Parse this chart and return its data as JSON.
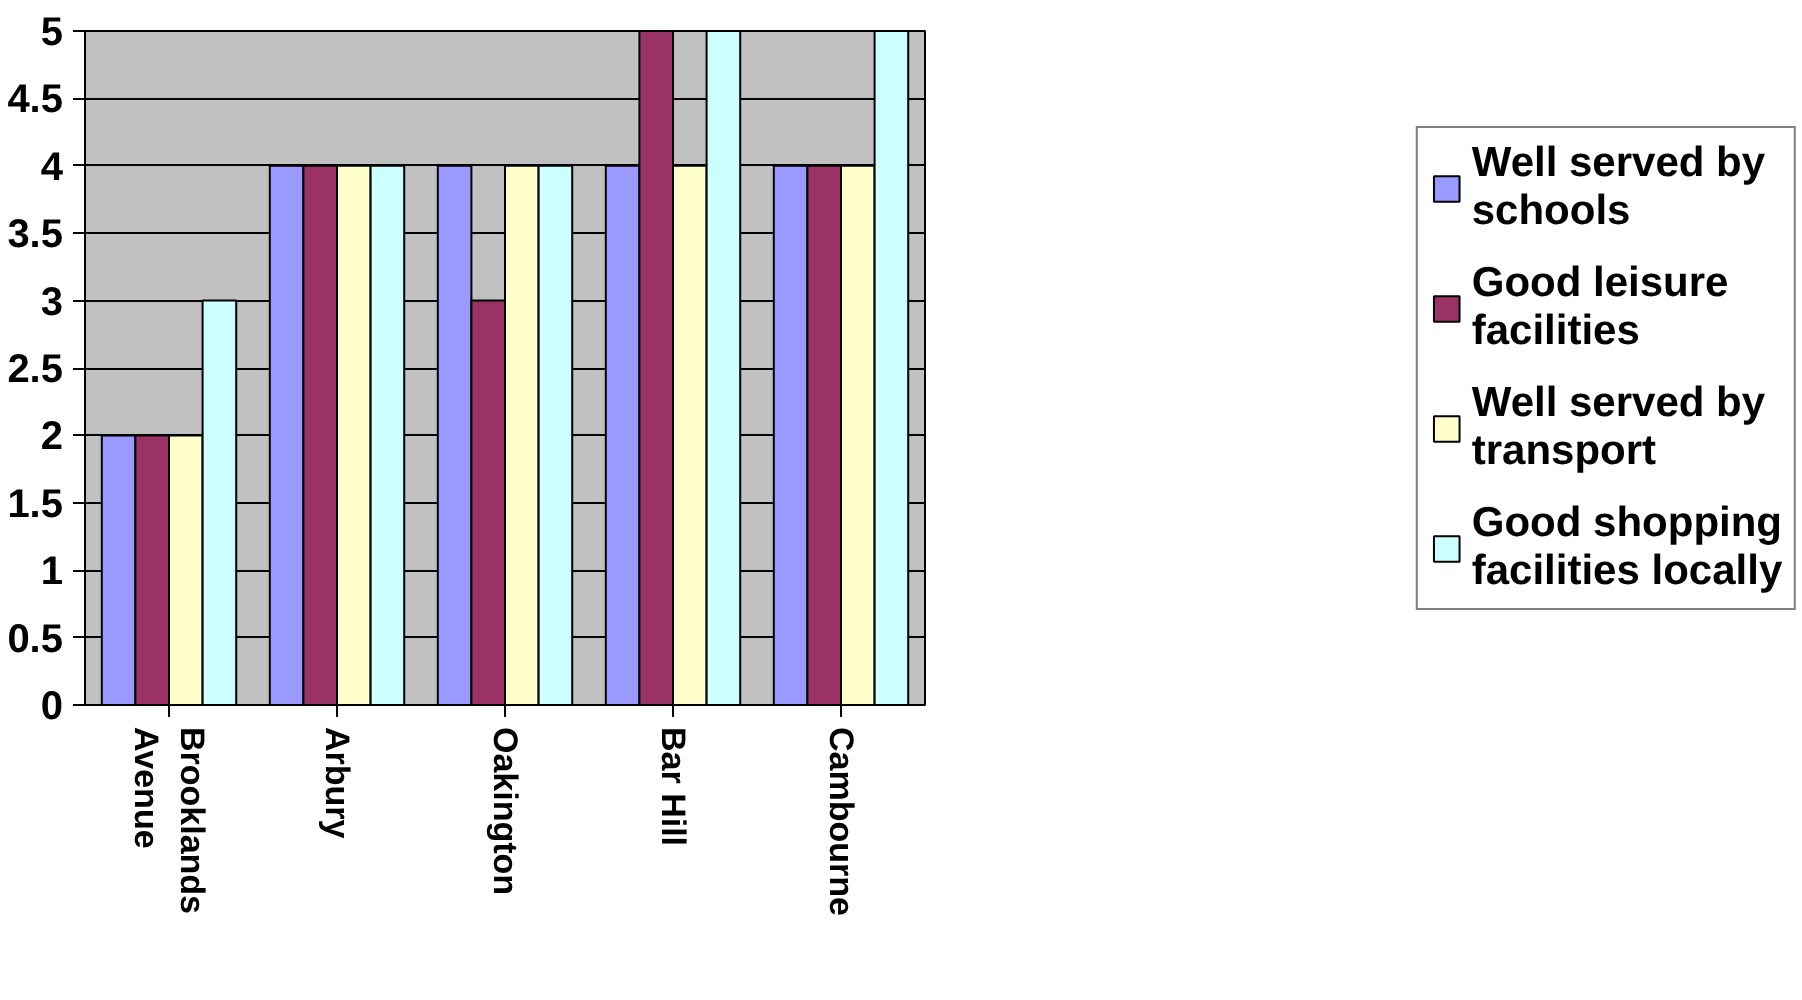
{
  "chart_data": {
    "type": "bar",
    "categories": [
      "Brooklands Avenue",
      "Arbury",
      "Oakington",
      "Bar Hill",
      "Cambourne"
    ],
    "series": [
      {
        "name": "Well served by schools",
        "color": "#9999ff",
        "values": [
          2,
          4,
          4,
          4,
          4
        ]
      },
      {
        "name": "Good leisure facilities",
        "color": "#993366",
        "values": [
          2,
          4,
          3,
          5,
          4
        ]
      },
      {
        "name": "Well served by transport",
        "color": "#ffffcc",
        "values": [
          2,
          4,
          4,
          4,
          4
        ]
      },
      {
        "name": "Good shopping facilities locally",
        "color": "#ccffff",
        "values": [
          3,
          4,
          4,
          5,
          5
        ]
      }
    ],
    "ylim": [
      0,
      5
    ],
    "yticks": [
      0,
      0.5,
      1,
      1.5,
      2,
      2.5,
      3,
      3.5,
      4,
      4.5,
      5
    ],
    "grid": "y",
    "legend": "right"
  }
}
